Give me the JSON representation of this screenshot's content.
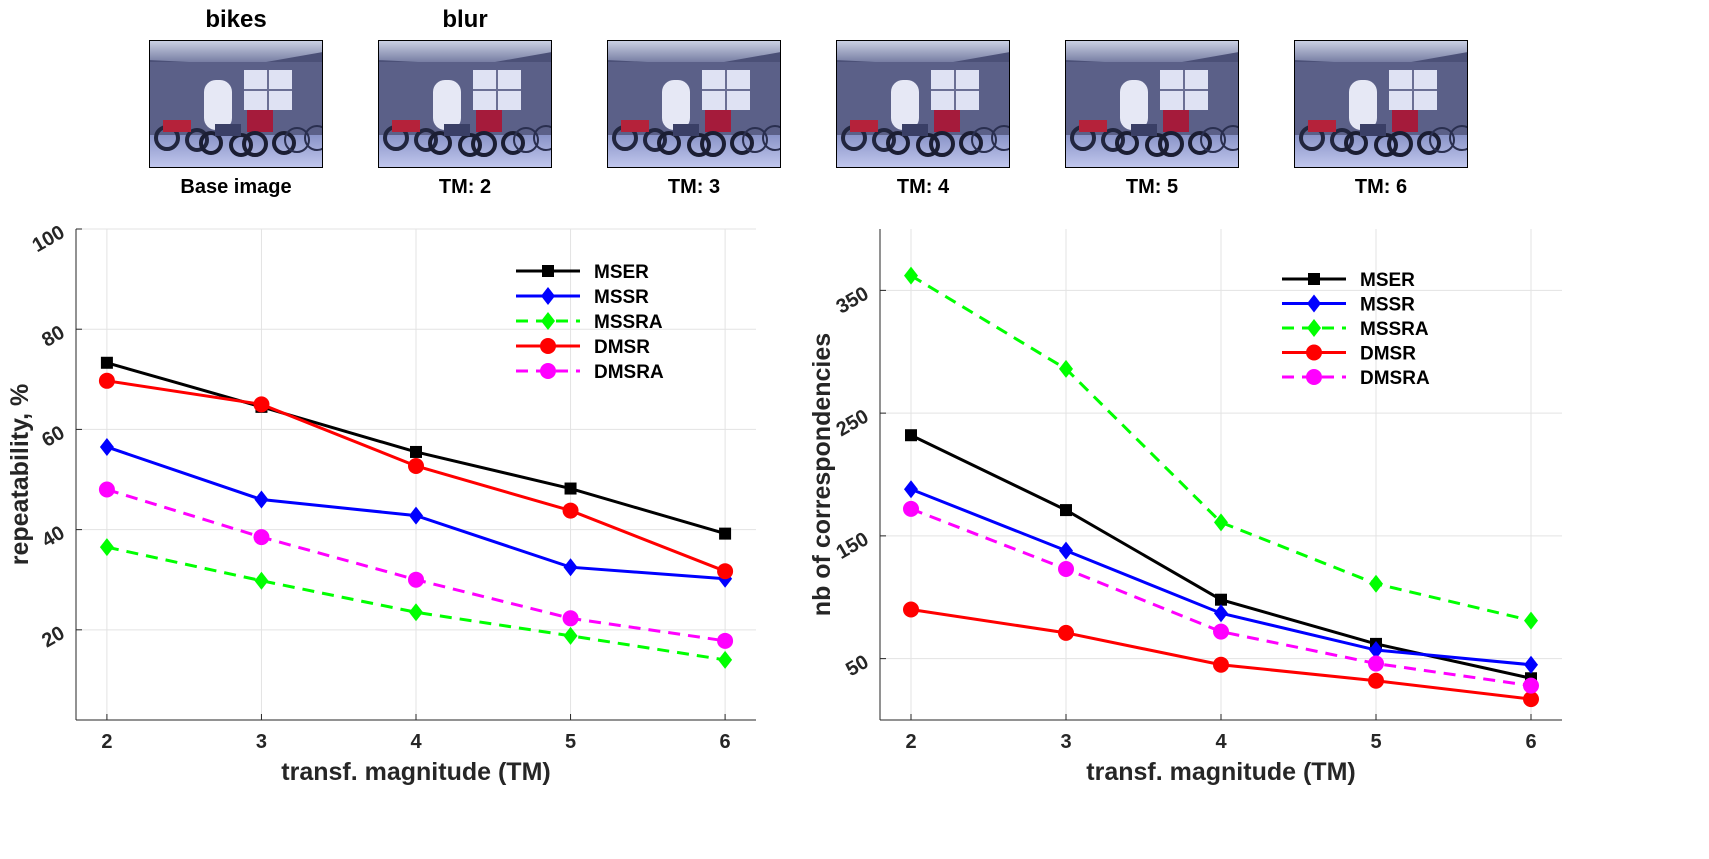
{
  "header": {
    "dataset_label": "bikes",
    "transform_label": "blur"
  },
  "thumbnails": [
    {
      "label": "Base image"
    },
    {
      "label": "TM: 2"
    },
    {
      "label": "TM: 3"
    },
    {
      "label": "TM: 4"
    },
    {
      "label": "TM: 5"
    },
    {
      "label": "TM: 6"
    }
  ],
  "colors": {
    "MSER": "#000000",
    "MSSR": "#0000ff",
    "MSSRA": "#00ff00",
    "DMSR": "#ff0000",
    "DMSRA": "#ff00ff"
  },
  "chart_data": [
    {
      "type": "line",
      "xlabel": "transf. magnitude (TM)",
      "ylabel": "repeatability, %",
      "x": [
        2,
        3,
        4,
        5,
        6
      ],
      "xticks": [
        2,
        3,
        4,
        5,
        6
      ],
      "yticks": [
        20,
        40,
        60,
        80,
        100
      ],
      "xlim": [
        1.8,
        6.2
      ],
      "ylim": [
        2,
        100
      ],
      "grid": true,
      "legend_position": "top-right",
      "series": [
        {
          "name": "MSER",
          "values": [
            73.3,
            64.5,
            55.5,
            48.2,
            39.2
          ],
          "marker": "square",
          "dashed": false
        },
        {
          "name": "MSSR",
          "values": [
            56.5,
            46.0,
            42.8,
            32.5,
            30.2
          ],
          "marker": "diamond",
          "dashed": false
        },
        {
          "name": "MSSRA",
          "values": [
            36.5,
            29.8,
            23.5,
            18.8,
            14.0
          ],
          "marker": "diamond",
          "dashed": true
        },
        {
          "name": "DMSR",
          "values": [
            69.7,
            65.0,
            52.7,
            43.8,
            31.7
          ],
          "marker": "circle",
          "dashed": false
        },
        {
          "name": "DMSRA",
          "values": [
            48.0,
            38.5,
            30.0,
            22.3,
            17.8
          ],
          "marker": "circle",
          "dashed": true
        }
      ]
    },
    {
      "type": "line",
      "xlabel": "transf. magnitude (TM)",
      "ylabel": "nb of correspondencies",
      "x": [
        2,
        3,
        4,
        5,
        6
      ],
      "xticks": [
        2,
        3,
        4,
        5,
        6
      ],
      "yticks": [
        50,
        150,
        250,
        350
      ],
      "xlim": [
        1.8,
        6.2
      ],
      "ylim": [
        0,
        400
      ],
      "grid": true,
      "legend_position": "top-right",
      "series": [
        {
          "name": "MSER",
          "values": [
            232,
            171,
            98,
            62,
            34
          ],
          "marker": "square",
          "dashed": false
        },
        {
          "name": "MSSR",
          "values": [
            188,
            138,
            87,
            57,
            45
          ],
          "marker": "diamond",
          "dashed": false
        },
        {
          "name": "MSSRA",
          "values": [
            362,
            286,
            161,
            111,
            81
          ],
          "marker": "diamond",
          "dashed": true
        },
        {
          "name": "DMSR",
          "values": [
            90,
            71,
            45,
            32,
            17
          ],
          "marker": "circle",
          "dashed": false
        },
        {
          "name": "DMSRA",
          "values": [
            172,
            123,
            72,
            46,
            28
          ],
          "marker": "circle",
          "dashed": true
        }
      ]
    }
  ]
}
